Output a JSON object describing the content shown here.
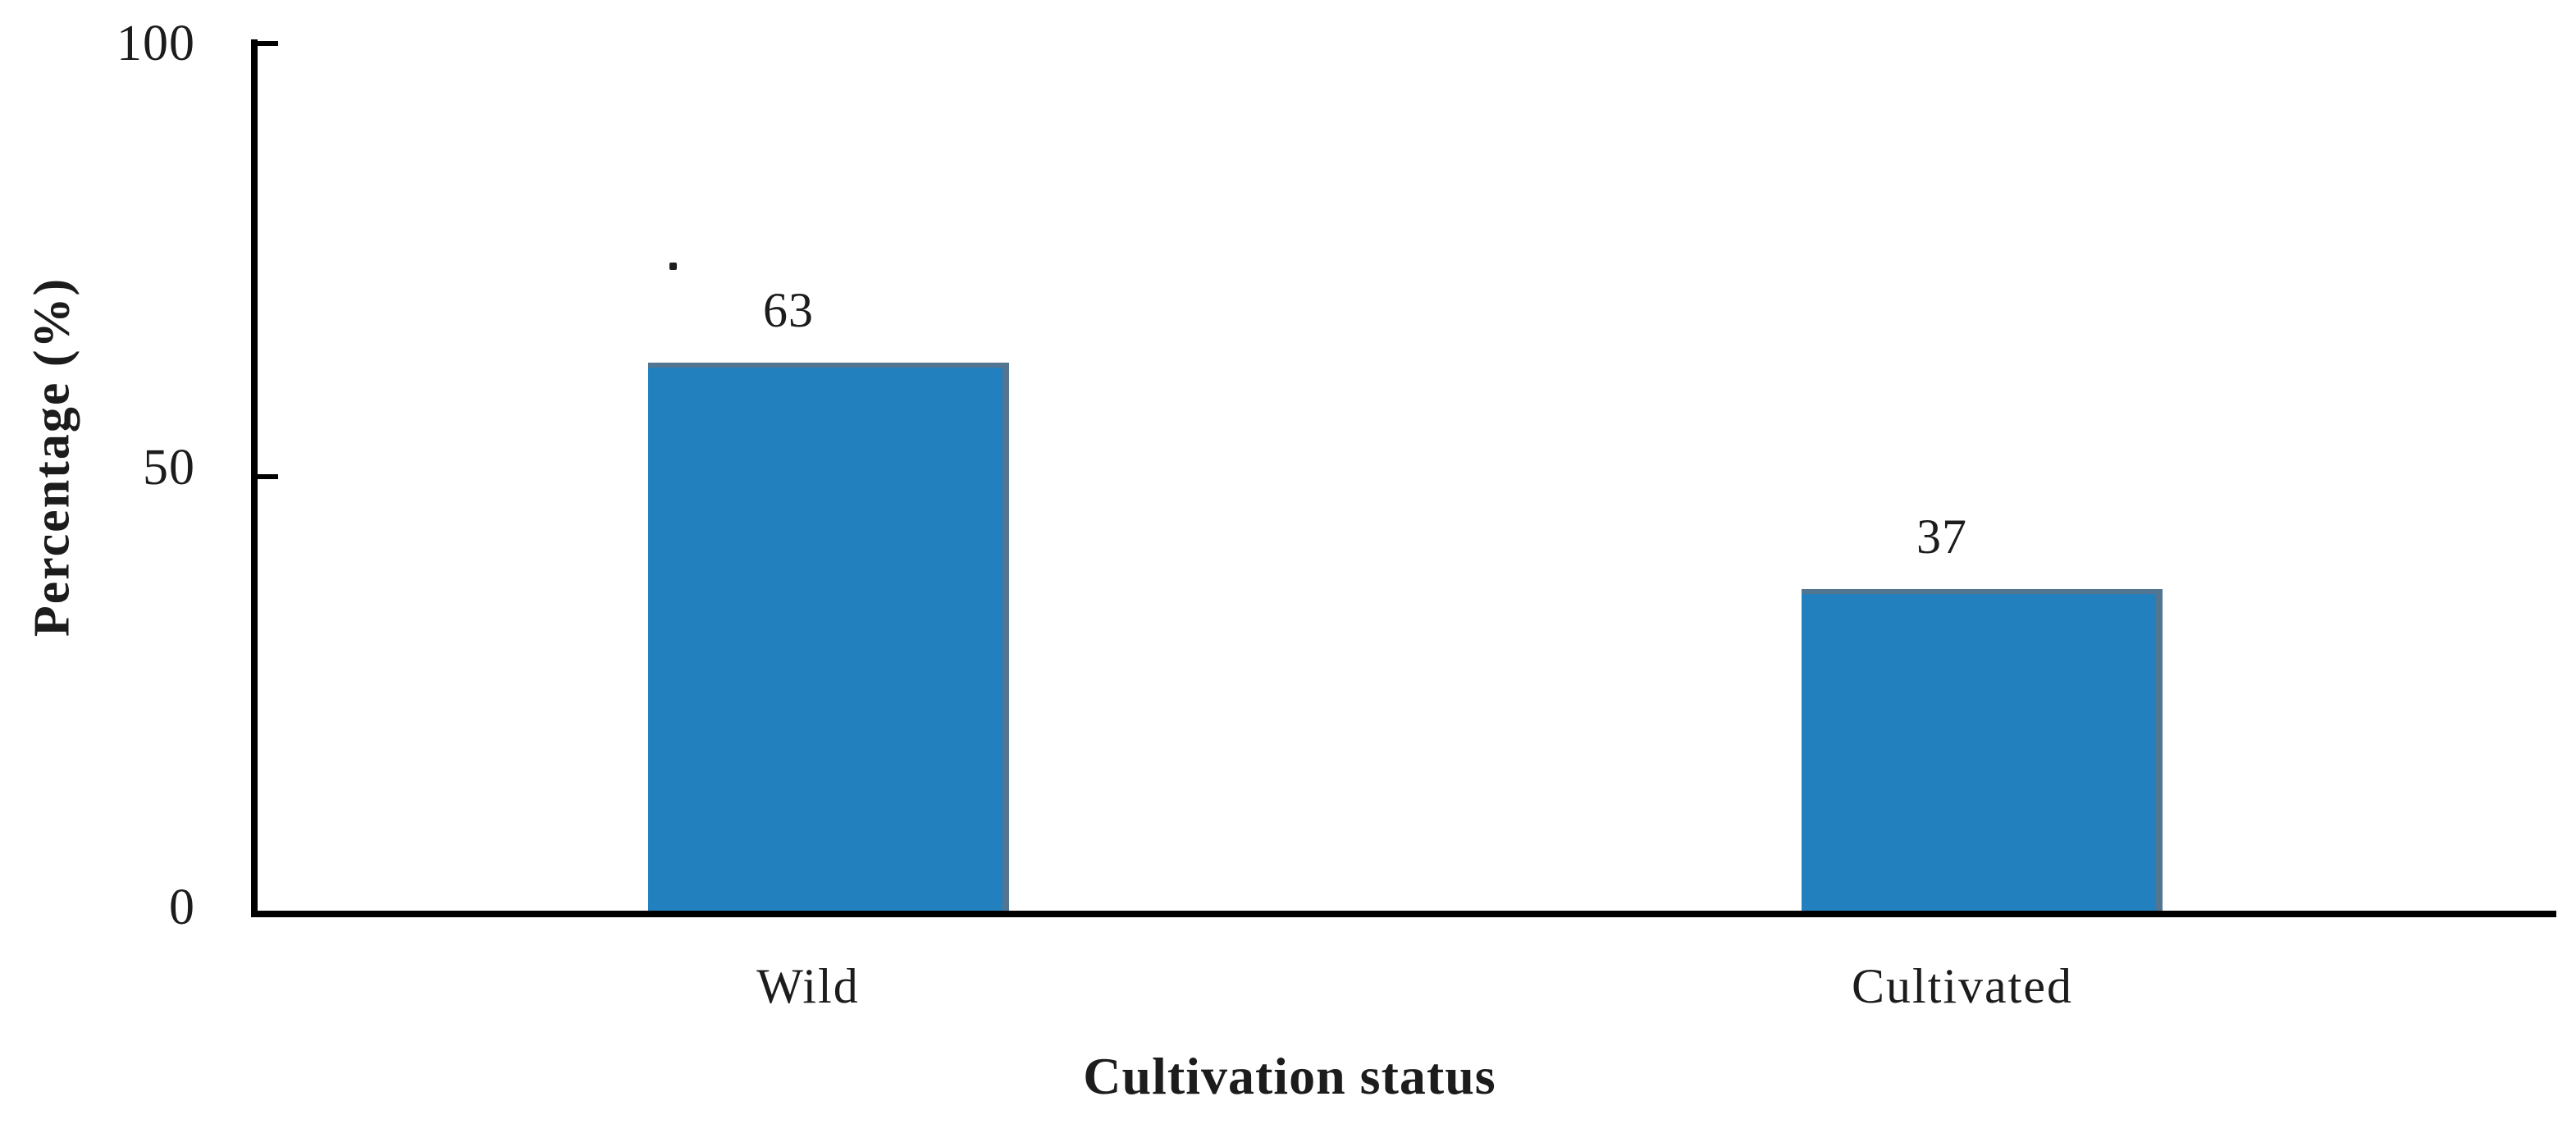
{
  "chart_data": {
    "type": "bar",
    "categories": [
      "Wild",
      "Cultivated"
    ],
    "values": [
      63,
      37
    ],
    "xlabel": "Cultivation status",
    "ylabel": "Percentage (%)",
    "ylim": [
      0,
      100
    ],
    "yticks_top_to_bottom": [
      100,
      50,
      0
    ],
    "grid": false,
    "legend": false,
    "tick_direction": "inside",
    "value_labels_shown": true,
    "colors": {
      "bar_fill": "#2380BE",
      "bar_edge": "#527591",
      "axis": "#000000",
      "text": "#1C1C1C",
      "background": "#FFFFFF"
    }
  },
  "artifacts": {
    "stray_dot_above_first_value_label": true
  }
}
